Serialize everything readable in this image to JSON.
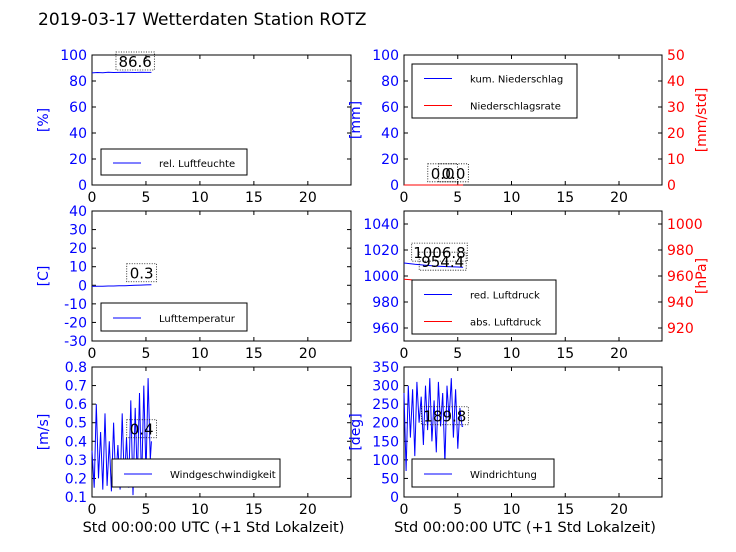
{
  "title": "2019-03-17 Wetterdaten Station ROTZ",
  "colors": {
    "blue": "#0000ff",
    "red": "#ff0000",
    "black": "#000000"
  },
  "chart_data": [
    {
      "id": "humidity",
      "type": "line",
      "xlim": [
        0,
        24
      ],
      "xticks": [
        0,
        5,
        10,
        15,
        20
      ],
      "ylim": [
        0,
        100
      ],
      "yticks": [
        0,
        20,
        40,
        60,
        80,
        100
      ],
      "ylabel": "[%]",
      "legend": [
        "rel. Luftfeuchte"
      ],
      "legend_loc": "lower-left",
      "series": [
        {
          "name": "rel. Luftfeuchte",
          "color": "blue",
          "axis": "left",
          "x": [
            0,
            0.5,
            1,
            1.5,
            2,
            2.5,
            3,
            3.5,
            4,
            4.5,
            5,
            5.5
          ],
          "y": [
            86.2,
            86.5,
            86.4,
            86.7,
            86.5,
            86.6,
            86.8,
            86.6,
            86.5,
            86.7,
            86.6,
            86.6
          ]
        }
      ],
      "annotation": {
        "text": "86.6",
        "x": 4.0,
        "y": 90
      }
    },
    {
      "id": "precip",
      "type": "line",
      "xlim": [
        0,
        24
      ],
      "xticks": [
        0,
        5,
        10,
        15,
        20
      ],
      "ylim": [
        0,
        100
      ],
      "yticks": [
        0,
        20,
        40,
        60,
        80,
        100
      ],
      "ylabel": "[mm]",
      "ylim2": [
        0,
        50
      ],
      "yticks2": [
        0,
        10,
        20,
        30,
        40,
        50
      ],
      "ylabel2": "[mm/std]",
      "legend": [
        "kum. Niederschlag",
        "Niederschlagsrate"
      ],
      "legend_loc": "upper-left",
      "series": [
        {
          "name": "kum. Niederschlag",
          "color": "blue",
          "axis": "left",
          "x": [
            0,
            1,
            2,
            3,
            4,
            5,
            5.5
          ],
          "y": [
            0,
            0,
            0,
            0,
            0,
            0,
            0
          ]
        },
        {
          "name": "Niederschlagsrate",
          "color": "red",
          "axis": "right",
          "x": [
            0,
            1,
            2,
            3,
            4,
            5,
            5.5
          ],
          "y": [
            0,
            0,
            0,
            0,
            0,
            0,
            0
          ]
        }
      ],
      "annotations": [
        {
          "text": "0.0",
          "x": 3.6,
          "y": 4
        },
        {
          "text": "0.0",
          "x": 4.6,
          "y": 4
        }
      ]
    },
    {
      "id": "temperature",
      "type": "line",
      "xlim": [
        0,
        24
      ],
      "xticks": [
        0,
        5,
        10,
        15,
        20
      ],
      "ylim": [
        -30,
        40
      ],
      "yticks": [
        -30,
        -20,
        -10,
        0,
        10,
        20,
        30,
        40
      ],
      "ylabel": "[C]",
      "legend": [
        "Lufttemperatur"
      ],
      "legend_loc": "lower-left",
      "series": [
        {
          "name": "Lufttemperatur",
          "color": "blue",
          "axis": "left",
          "x": [
            0,
            0.5,
            1,
            1.5,
            2,
            2.5,
            3,
            3.5,
            4,
            4.5,
            5,
            5.5
          ],
          "y": [
            -0.6,
            -0.5,
            -0.5,
            -0.4,
            -0.4,
            -0.3,
            -0.2,
            -0.1,
            0.0,
            0.1,
            0.2,
            0.3
          ]
        }
      ],
      "annotation": {
        "text": "0.3",
        "x": 4.6,
        "y": 3
      }
    },
    {
      "id": "pressure",
      "type": "line",
      "xlim": [
        0,
        24
      ],
      "xticks": [
        0,
        5,
        10,
        15,
        20
      ],
      "ylim": [
        950,
        1050
      ],
      "yticks": [
        960,
        980,
        1000,
        1020,
        1040
      ],
      "ylim2": [
        910,
        1010
      ],
      "yticks2": [
        920,
        940,
        960,
        980,
        1000
      ],
      "ylabel2": "[hPa]",
      "legend": [
        "red. Luftdruck",
        "abs. Luftdruck"
      ],
      "legend_loc": "lower-left",
      "series": [
        {
          "name": "red. Luftdruck",
          "color": "blue",
          "axis": "left",
          "x": [
            0,
            0.5,
            1,
            2,
            3,
            4,
            5,
            5.5
          ],
          "y": [
            1010.0,
            1009.5,
            1009.0,
            1008.3,
            1007.6,
            1007.2,
            1006.9,
            1006.8
          ]
        },
        {
          "name": "abs. Luftdruck",
          "color": "red",
          "axis": "right",
          "x": [
            0,
            0.5,
            1,
            2,
            3,
            4,
            5,
            5.5
          ],
          "y": [
            957.5,
            957.2,
            956.8,
            956.1,
            955.4,
            954.9,
            954.5,
            954.4
          ]
        }
      ],
      "annotations": [
        {
          "text": "1006.8",
          "x": 3.3,
          "y": 1013
        },
        {
          "text": "954.4",
          "x": 3.6,
          "y": 1006
        }
      ]
    },
    {
      "id": "windspeed",
      "type": "line",
      "xlim": [
        0,
        24
      ],
      "xticks": [
        0,
        5,
        10,
        15,
        20
      ],
      "ylim": [
        0.1,
        0.8
      ],
      "yticks": [
        0.1,
        0.2,
        0.3,
        0.4,
        0.5,
        0.6,
        0.7,
        0.8
      ],
      "ylabel": "[m/s]",
      "xlabel": "Std 00:00:00 UTC (+1 Std Lokalzeit)",
      "legend": [
        "Windgeschwindigkeit"
      ],
      "legend_loc": "lower-right",
      "series": [
        {
          "name": "Windgeschwindigkeit",
          "color": "blue",
          "axis": "left",
          "x": [
            0,
            0.2,
            0.4,
            0.6,
            0.8,
            1.0,
            1.2,
            1.4,
            1.6,
            1.8,
            2.0,
            2.2,
            2.4,
            2.6,
            2.8,
            3.0,
            3.2,
            3.4,
            3.6,
            3.8,
            4.0,
            4.2,
            4.4,
            4.6,
            4.8,
            5.0,
            5.2,
            5.4,
            5.5
          ],
          "y": [
            0.35,
            0.15,
            0.6,
            0.2,
            0.45,
            0.14,
            0.55,
            0.16,
            0.4,
            0.13,
            0.5,
            0.18,
            0.38,
            0.14,
            0.55,
            0.17,
            0.42,
            0.15,
            0.62,
            0.11,
            0.58,
            0.19,
            0.66,
            0.16,
            0.7,
            0.22,
            0.74,
            0.3,
            0.4
          ]
        }
      ],
      "annotation": {
        "text": "0.4",
        "x": 4.6,
        "y": 0.43
      }
    },
    {
      "id": "winddir",
      "type": "line",
      "xlim": [
        0,
        24
      ],
      "xticks": [
        0,
        5,
        10,
        15,
        20
      ],
      "ylim": [
        0,
        350
      ],
      "yticks": [
        0,
        50,
        100,
        150,
        200,
        250,
        300,
        350
      ],
      "ylabel": "[deg]",
      "xlabel": "Std 00:00:00 UTC (+1 Std Lokalzeit)",
      "legend": [
        "Windrichtung"
      ],
      "legend_loc": "lower-left",
      "series": [
        {
          "name": "Windrichtung",
          "color": "blue",
          "axis": "left",
          "x": [
            0,
            0.2,
            0.4,
            0.6,
            0.8,
            1.0,
            1.2,
            1.4,
            1.6,
            1.8,
            2.0,
            2.2,
            2.4,
            2.6,
            2.8,
            3.0,
            3.2,
            3.4,
            3.6,
            3.8,
            4.0,
            4.2,
            4.4,
            4.6,
            4.8,
            5.0,
            5.2,
            5.4,
            5.5
          ],
          "y": [
            280,
            70,
            300,
            160,
            290,
            110,
            310,
            200,
            270,
            140,
            300,
            180,
            320,
            150,
            260,
            120,
            310,
            190,
            280,
            90,
            300,
            210,
            320,
            160,
            290,
            130,
            240,
            190,
            190
          ]
        }
      ],
      "annotation": {
        "text": "189.8",
        "x": 3.8,
        "y": 200
      }
    }
  ]
}
